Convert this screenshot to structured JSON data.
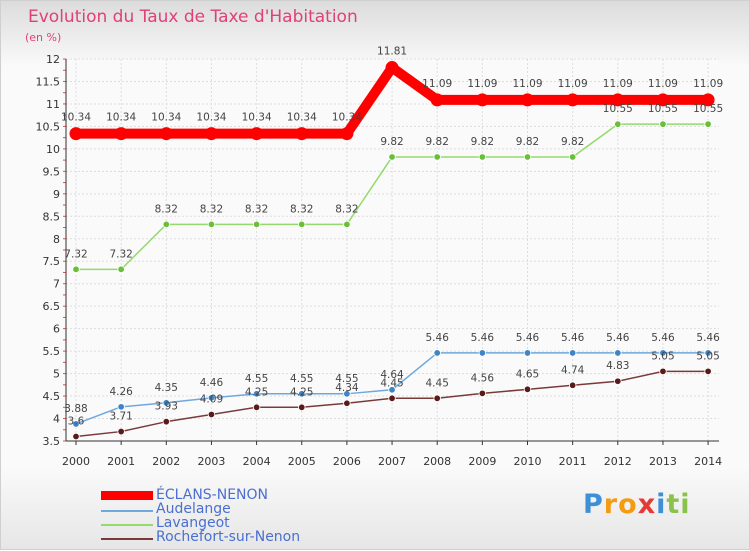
{
  "chart_data": {
    "type": "line",
    "title": "Evolution du Taux de Taxe d'Habitation",
    "ylabel": "(en %)",
    "xlabel": "",
    "ylim": [
      3.5,
      12
    ],
    "yticks": [
      "3.5",
      "4",
      "4.5",
      "5",
      "5.5",
      "6",
      "6.5",
      "7",
      "7.5",
      "8",
      "8.5",
      "9",
      "9.5",
      "10",
      "10.5",
      "11",
      "11.5",
      "12"
    ],
    "categories": [
      "2000",
      "2001",
      "2002",
      "2003",
      "2004",
      "2005",
      "2006",
      "2007",
      "2008",
      "2009",
      "2010",
      "2011",
      "2012",
      "2013",
      "2014"
    ],
    "series": [
      {
        "name": "ÉCLANS-NENON",
        "color": "#ff0000",
        "marker": "#ff0000",
        "values": [
          10.34,
          10.34,
          10.34,
          10.34,
          10.34,
          10.34,
          10.34,
          11.81,
          11.09,
          11.09,
          11.09,
          11.09,
          11.09,
          11.09,
          11.09
        ],
        "labels": [
          "10.34",
          "10.34",
          "10.34",
          "10.34",
          "10.34",
          "10.34",
          "10.34",
          "11.81",
          "11.09",
          "11.09",
          "11.09",
          "11.09",
          "11.09",
          "11.09",
          "11.09"
        ]
      },
      {
        "name": "Audelange",
        "color": "#6fa8dc",
        "marker": "#3d85c6",
        "values": [
          3.88,
          4.26,
          4.35,
          4.46,
          4.55,
          4.55,
          4.55,
          4.64,
          5.46,
          5.46,
          5.46,
          5.46,
          5.46,
          5.46,
          5.46
        ],
        "labels": [
          "3.88",
          "4.26",
          "4.35",
          "4.46",
          "4.55",
          "4.55",
          "4.55",
          "4.64",
          "5.46",
          "5.46",
          "5.46",
          "5.46",
          "5.46",
          "5.46",
          "5.46"
        ]
      },
      {
        "name": "Lavangeot",
        "color": "#93d96b",
        "marker": "#6abf3a",
        "values": [
          7.32,
          7.32,
          8.32,
          8.32,
          8.32,
          8.32,
          8.32,
          9.82,
          9.82,
          9.82,
          9.82,
          9.82,
          10.55,
          10.55,
          10.55
        ],
        "labels": [
          "7.32",
          "7.32",
          "8.32",
          "8.32",
          "8.32",
          "8.32",
          "8.32",
          "9.82",
          "9.82",
          "9.82",
          "9.82",
          "9.82",
          "10.55",
          "10.55",
          "10.55"
        ]
      },
      {
        "name": "Rochefort-sur-Nenon",
        "color": "#7a3a3a",
        "marker": "#5a1a1a",
        "values": [
          3.6,
          3.71,
          3.93,
          4.09,
          4.25,
          4.25,
          4.34,
          4.45,
          4.45,
          4.56,
          4.65,
          4.74,
          4.83,
          5.05,
          5.05
        ],
        "labels": [
          "3.6",
          "3.71",
          "3.93",
          "4.09",
          "4.25",
          "4.25",
          "4.34",
          "4.45",
          "4.45",
          "4.56",
          "4.65",
          "4.74",
          "4.83",
          "5.05",
          "5.05"
        ]
      }
    ]
  },
  "legend": {
    "items": [
      "ÉCLANS-NENON",
      "Audelange",
      "Lavangeot",
      "Rochefort-sur-Nenon"
    ]
  },
  "logo": {
    "text": "Proxiti",
    "letters": [
      "P",
      "r",
      "o",
      "x",
      "i",
      "t",
      "i"
    ],
    "colors": [
      "#3d8fd6",
      "#f39c12",
      "#f39c12",
      "#e53935",
      "#3d8fd6",
      "#8bc34a",
      "#8bc34a"
    ]
  }
}
